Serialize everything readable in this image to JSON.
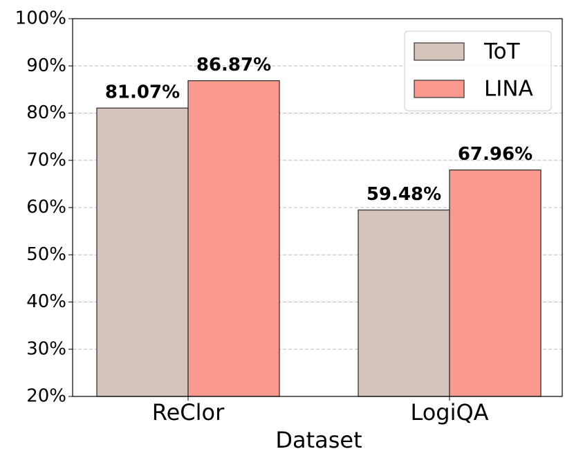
{
  "chart_data": {
    "type": "bar",
    "x_label": "Dataset",
    "categories": [
      "ReClor",
      "LogiQA"
    ],
    "series": [
      {
        "name": "ToT",
        "color": "#d5c4bc",
        "values": [
          81.07,
          59.48
        ],
        "value_labels": [
          "81.07%",
          "59.48%"
        ]
      },
      {
        "name": "LINA",
        "color": "#fa9a8e",
        "values": [
          86.87,
          67.96
        ],
        "value_labels": [
          "86.87%",
          "67.96%"
        ]
      }
    ],
    "ylim": [
      20,
      100
    ],
    "yticks": [
      {
        "value": 20,
        "label": "20%"
      },
      {
        "value": 30,
        "label": "30%"
      },
      {
        "value": 40,
        "label": "40%"
      },
      {
        "value": 50,
        "label": "50%"
      },
      {
        "value": 60,
        "label": "60%"
      },
      {
        "value": 70,
        "label": "70%"
      },
      {
        "value": 80,
        "label": "80%"
      },
      {
        "value": 90,
        "label": "90%"
      },
      {
        "value": 100,
        "label": "100%"
      }
    ],
    "grid": true,
    "legend": "upper right"
  }
}
